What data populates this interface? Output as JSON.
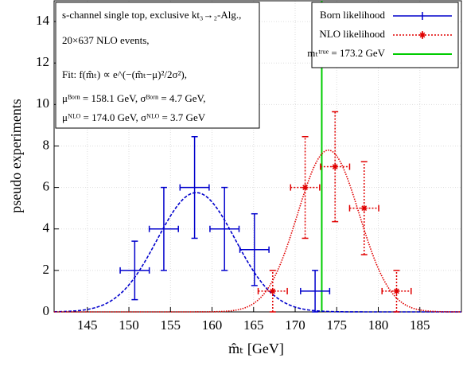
{
  "chart_data": {
    "type": "errorbar",
    "xlabel": "m̂ₜ [GeV]",
    "ylabel": "pseudo experiments",
    "xlim": [
      141,
      190
    ],
    "ylim": [
      0,
      15
    ],
    "xticks": [
      145,
      150,
      155,
      160,
      165,
      170,
      175,
      180,
      185
    ],
    "yticks": [
      0,
      2,
      4,
      6,
      8,
      10,
      12,
      14
    ],
    "grid": true,
    "legend": "upper right",
    "annotations": [
      "s-channel single top, exclusive kt₃→₂-Alg.,",
      "20×637 NLO events,",
      "Fit:   f(m̂ₜ) ∝ e^(−(m̂ₜ−μ)²/2σ²),",
      "μᴮᵒʳⁿ = 158.1 GeV, σᴮᵒʳⁿ = 4.7 GeV,",
      "μᴺᴸᴼ = 174.0 GeV, σᴺᴸᴼ = 3.7 GeV"
    ],
    "series": [
      {
        "name": "Born likelihood",
        "color": "#0000cc",
        "marker": "none",
        "dashed": false,
        "x": [
          150.7,
          154.2,
          157.9,
          161.5,
          165.1,
          172.4
        ],
        "values": [
          2,
          4,
          6,
          4,
          3,
          1
        ],
        "yerr": [
          1.41,
          2,
          2.45,
          2,
          1.73,
          1
        ],
        "xerr": [
          1.75,
          1.75,
          1.75,
          1.75,
          1.75,
          1.75
        ],
        "fit": {
          "amplitude": 5.75,
          "mu": 158.1,
          "sigma": 4.7
        }
      },
      {
        "name": "NLO likelihood",
        "color": "#e00000",
        "marker": "star",
        "dashed": true,
        "x": [
          167.3,
          171.2,
          174.8,
          178.3,
          182.2
        ],
        "values": [
          1,
          6,
          7,
          5,
          1
        ],
        "yerr": [
          1,
          2.45,
          2.65,
          2.24,
          1
        ],
        "xerr": [
          1.75,
          1.75,
          1.75,
          1.75,
          1.75
        ],
        "fit": {
          "amplitude": 7.8,
          "mu": 174.0,
          "sigma": 3.7
        }
      }
    ],
    "vline": {
      "name": "mₜᵗʳᵘᵉ = 173.2 GeV",
      "value": 173.2,
      "color": "#00cc00"
    }
  }
}
